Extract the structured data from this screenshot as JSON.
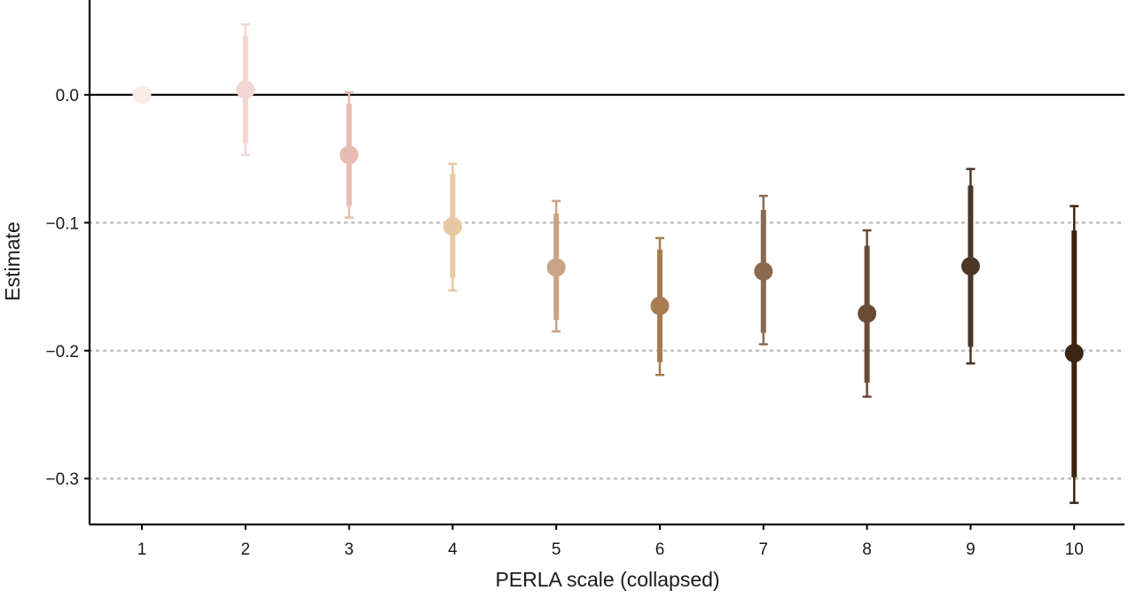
{
  "chart_data": {
    "type": "scatter",
    "subtype": "point-range",
    "title": "",
    "xlabel": "PERLA scale (collapsed)",
    "ylabel": "Estimate",
    "x": [
      "1",
      "2",
      "3",
      "4",
      "5",
      "6",
      "7",
      "8",
      "9",
      "10"
    ],
    "estimate": [
      0.0,
      0.004,
      -0.047,
      -0.103,
      -0.135,
      -0.165,
      -0.138,
      -0.171,
      -0.134,
      -0.202
    ],
    "inner_interval": [
      [
        0.0,
        0.0
      ],
      [
        -0.038,
        0.046
      ],
      [
        -0.087,
        -0.007
      ],
      [
        -0.143,
        -0.062
      ],
      [
        -0.176,
        -0.093
      ],
      [
        -0.209,
        -0.121
      ],
      [
        -0.186,
        -0.09
      ],
      [
        -0.225,
        -0.118
      ],
      [
        -0.197,
        -0.071
      ],
      [
        -0.299,
        -0.106
      ]
    ],
    "outer_interval": [
      [
        0.0,
        0.0
      ],
      [
        -0.047,
        0.055
      ],
      [
        -0.096,
        0.002
      ],
      [
        -0.153,
        -0.054
      ],
      [
        -0.185,
        -0.083
      ],
      [
        -0.219,
        -0.112
      ],
      [
        -0.195,
        -0.079
      ],
      [
        -0.236,
        -0.106
      ],
      [
        -0.21,
        -0.058
      ],
      [
        -0.319,
        -0.087
      ]
    ],
    "colors": [
      "#fbecea",
      "#f4d6d0",
      "#e8bcb2",
      "#e8c8a0",
      "#c9a383",
      "#a97c50",
      "#8a6a50",
      "#6b4a36",
      "#4c3628",
      "#3a2612"
    ],
    "ylim": [
      -0.335,
      0.07
    ],
    "yticks": [
      0.0,
      -0.1,
      -0.2,
      -0.3
    ],
    "ytick_labels": [
      "0.0",
      "−0.1",
      "−0.2",
      "−0.3"
    ],
    "reference_line": 0.0,
    "dotted_gridlines": [
      -0.1,
      -0.2,
      -0.3
    ],
    "legend": "none"
  }
}
